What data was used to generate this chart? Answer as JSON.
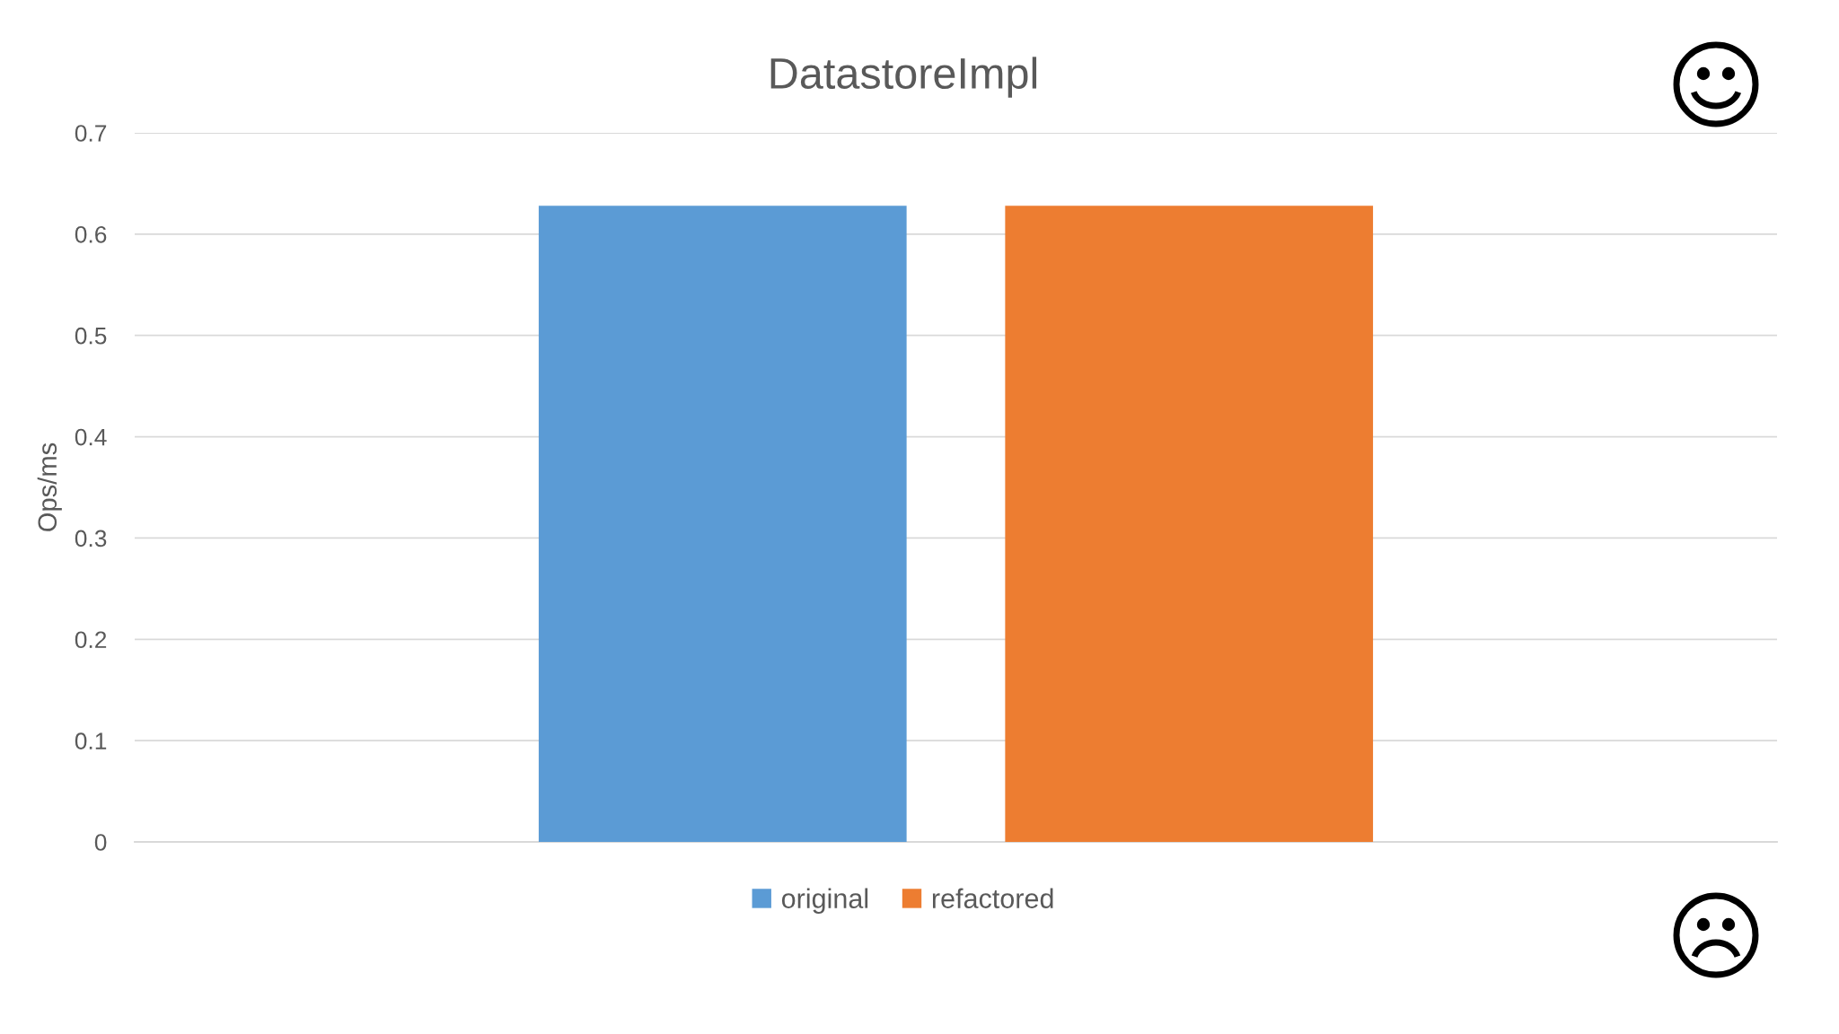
{
  "chart_data": {
    "type": "bar",
    "title": "DatastoreImpl",
    "ylabel": "Ops/ms",
    "categories": [
      null
    ],
    "series": [
      {
        "name": "original",
        "color": "#5b9bd5",
        "values": [
          0.628
        ]
      },
      {
        "name": "refactored",
        "color": "#ed7d31",
        "values": [
          0.628
        ]
      }
    ],
    "ylim": [
      0,
      0.7
    ],
    "yticks": [
      0,
      0.1,
      0.2,
      0.3,
      0.4,
      0.5,
      0.6,
      0.7
    ],
    "grid": "y",
    "legend": "bottom"
  }
}
